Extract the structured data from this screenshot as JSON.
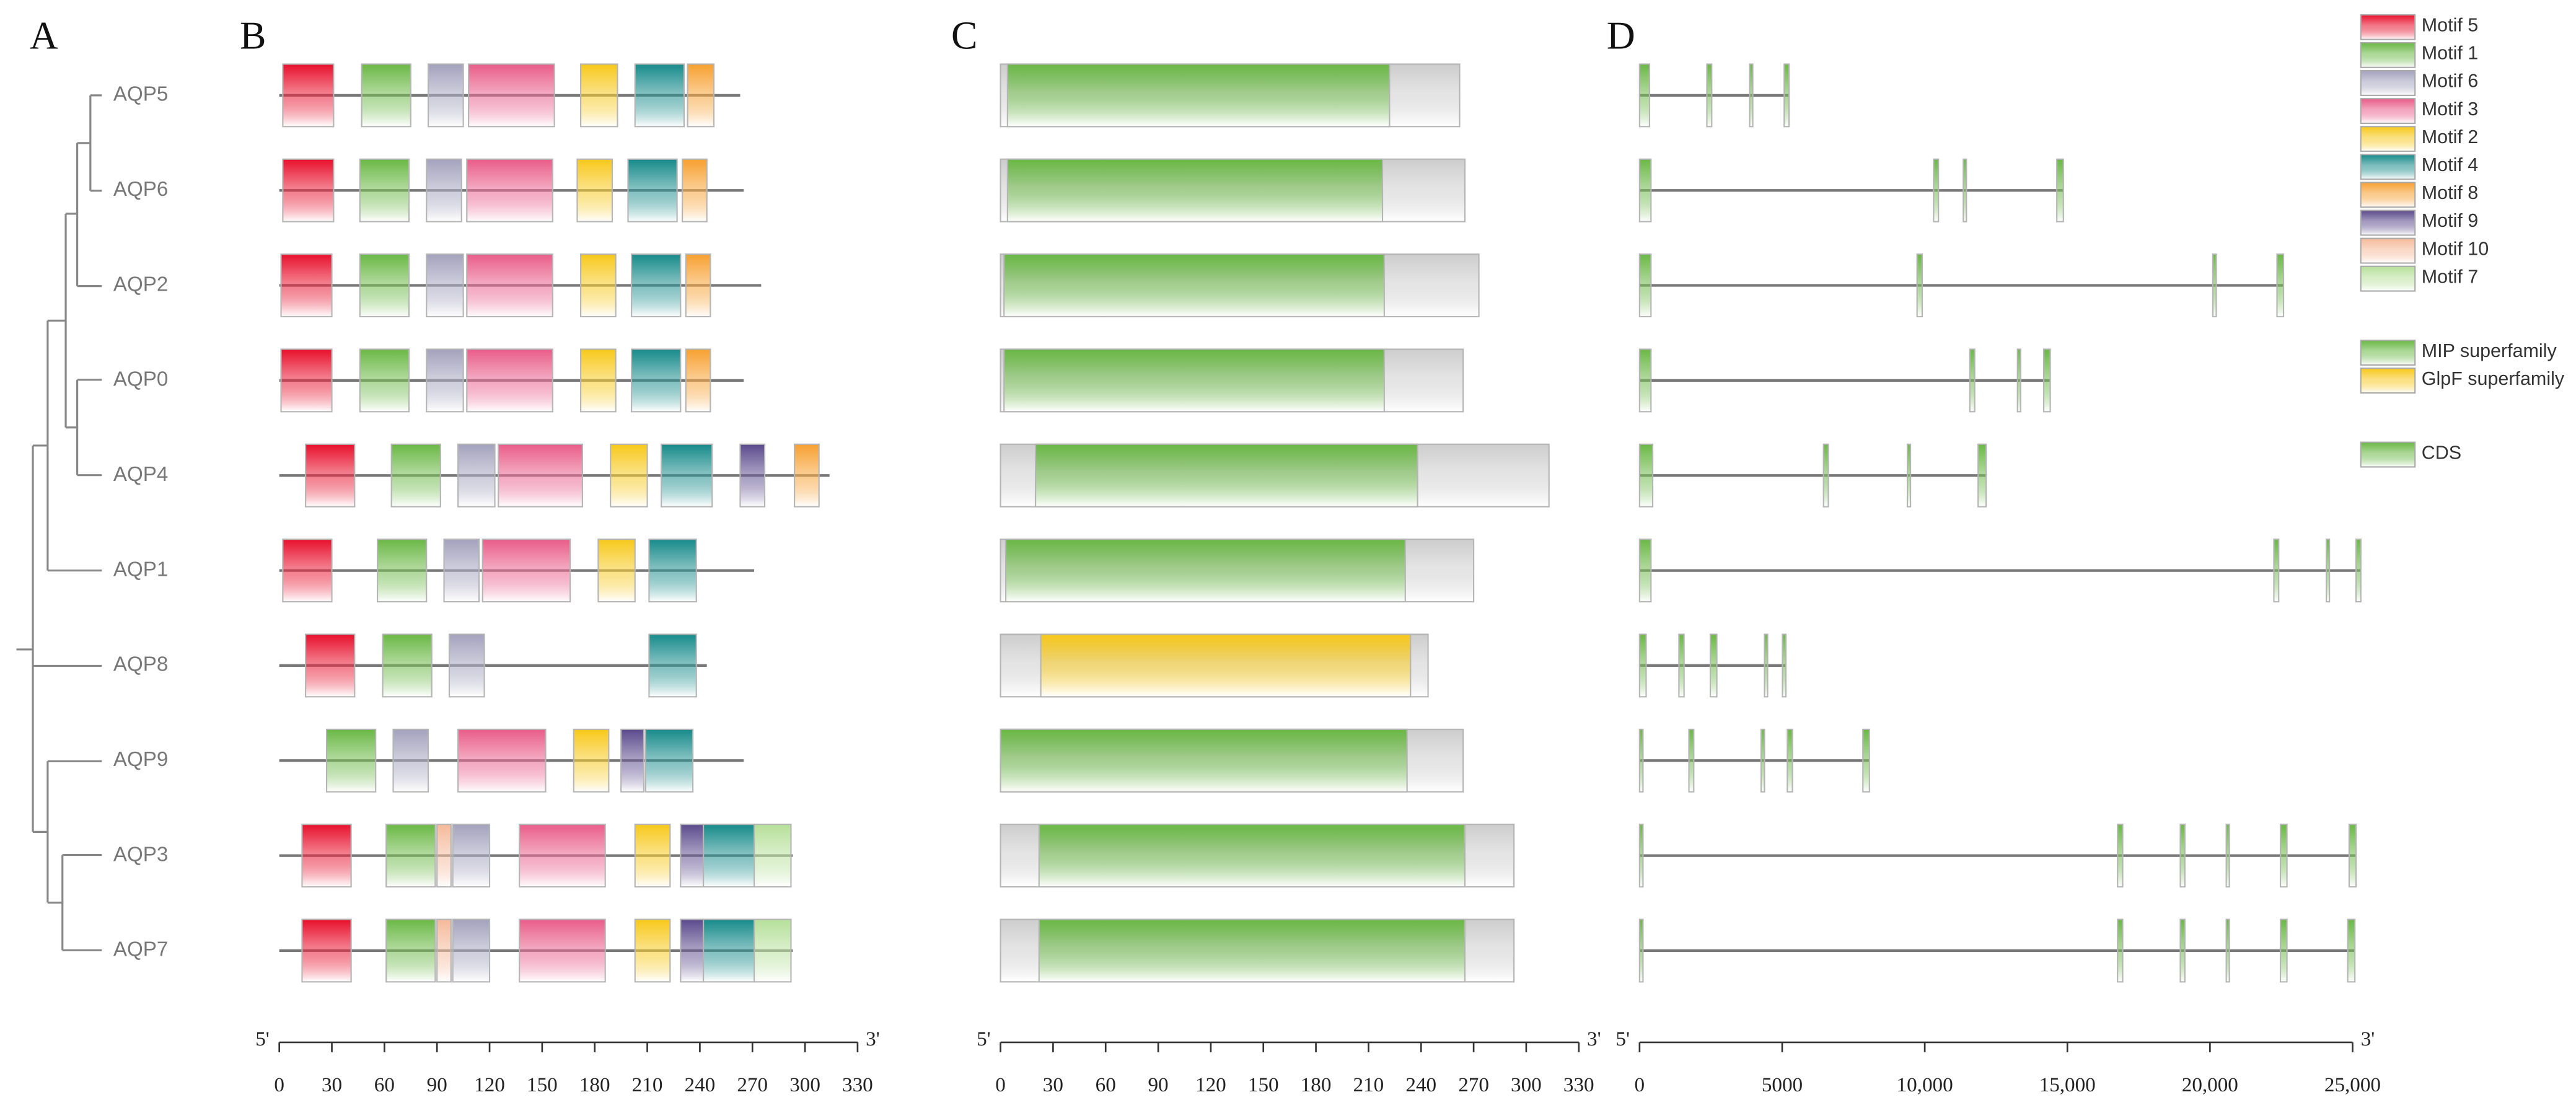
{
  "panel_labels": [
    "A",
    "B",
    "C",
    "D"
  ],
  "genes": [
    "AQP5",
    "AQP6",
    "AQP2",
    "AQP0",
    "AQP4",
    "AQP1",
    "AQP8",
    "AQP9",
    "AQP3",
    "AQP7"
  ],
  "chart_data": [
    {
      "type": "motif",
      "xlim": [
        0,
        330
      ],
      "xticks": [
        0,
        30,
        60,
        90,
        120,
        150,
        180,
        210,
        240,
        270,
        300,
        330
      ],
      "end_labels": [
        "5'",
        "3'"
      ],
      "lengths": [
        263,
        265,
        275,
        265,
        314,
        271,
        244,
        265,
        293,
        293
      ],
      "series": [
        {
          "name": "Motif 5",
          "color": "#e8102c",
          "start": [
            2,
            2,
            1,
            1,
            15,
            2,
            15,
            null,
            13,
            13
          ],
          "end": [
            31,
            31,
            30,
            30,
            43,
            30,
            43,
            null,
            41,
            41
          ]
        },
        {
          "name": "Motif 1",
          "color": "#6ab845",
          "start": [
            47,
            46,
            46,
            46,
            64,
            56,
            59,
            27,
            61,
            61
          ],
          "end": [
            75,
            74,
            74,
            74,
            92,
            84,
            87,
            55,
            89,
            89
          ]
        },
        {
          "name": "Motif 6",
          "color": "#a3a2bd",
          "start": [
            85,
            84,
            84,
            84,
            102,
            94,
            97,
            65,
            99,
            99
          ],
          "end": [
            105,
            104,
            105,
            105,
            123,
            114,
            117,
            85,
            120,
            120
          ]
        },
        {
          "name": "Motif 3",
          "color": "#e95c8a",
          "start": [
            108,
            107,
            107,
            107,
            125,
            116,
            null,
            102,
            137,
            137
          ],
          "end": [
            157,
            156,
            156,
            156,
            173,
            166,
            null,
            152,
            186,
            186
          ]
        },
        {
          "name": "Motif 2",
          "color": "#f7c81a",
          "start": [
            172,
            170,
            172,
            172,
            189,
            182,
            null,
            168,
            203,
            203
          ],
          "end": [
            193,
            190,
            192,
            192,
            210,
            203,
            null,
            188,
            223,
            223
          ]
        },
        {
          "name": "Motif 4",
          "color": "#178a8a",
          "start": [
            203,
            199,
            201,
            201,
            218,
            211,
            211,
            209,
            242,
            242
          ],
          "end": [
            231,
            227,
            229,
            229,
            247,
            238,
            238,
            236,
            271,
            271
          ]
        },
        {
          "name": "Motif 8",
          "color": "#f7a030",
          "start": [
            233,
            230,
            232,
            232,
            294,
            null,
            null,
            null,
            null,
            null
          ],
          "end": [
            248,
            244,
            246,
            246,
            308,
            null,
            null,
            null,
            null,
            null
          ]
        },
        {
          "name": "Motif 9",
          "color": "#5b4a8c",
          "start": [
            null,
            null,
            null,
            null,
            263,
            null,
            null,
            195,
            229,
            229
          ],
          "end": [
            null,
            null,
            null,
            null,
            277,
            null,
            null,
            208,
            242,
            242
          ]
        },
        {
          "name": "Motif 10",
          "color": "#f5b99a",
          "start": [
            null,
            null,
            null,
            null,
            null,
            null,
            null,
            null,
            90,
            90
          ],
          "end": [
            null,
            null,
            null,
            null,
            null,
            null,
            null,
            null,
            98,
            98
          ]
        },
        {
          "name": "Motif 7",
          "color": "#b6e09a",
          "start": [
            null,
            null,
            null,
            null,
            null,
            null,
            null,
            null,
            271,
            271
          ],
          "end": [
            null,
            null,
            null,
            null,
            null,
            null,
            null,
            null,
            292,
            292
          ]
        }
      ]
    },
    {
      "type": "domain",
      "xlim": [
        0,
        330
      ],
      "xticks": [
        0,
        30,
        60,
        90,
        120,
        150,
        180,
        210,
        240,
        270,
        300,
        330
      ],
      "end_labels": [
        "5'",
        "3'"
      ],
      "lengths": [
        262,
        265,
        273,
        264,
        313,
        270,
        244,
        264,
        293,
        293
      ],
      "series": [
        {
          "name": "MIP superfamily",
          "color": "#6ab845",
          "start": [
            4,
            4,
            2,
            2,
            20,
            3,
            null,
            0,
            22,
            22
          ],
          "end": [
            222,
            218,
            219,
            219,
            238,
            231,
            null,
            232,
            265,
            265
          ]
        },
        {
          "name": "GlpF superfamily",
          "color": "#f7c81a",
          "start": [
            null,
            null,
            null,
            null,
            null,
            null,
            23,
            null,
            null,
            null
          ],
          "end": [
            null,
            null,
            null,
            null,
            null,
            null,
            234,
            null,
            null,
            null
          ]
        }
      ]
    },
    {
      "type": "gene",
      "xlim": [
        0,
        25000
      ],
      "xticks": [
        0,
        5000,
        {
          "value": 10000,
          "label": "10,000"
        },
        {
          "value": 15000,
          "label": "15,000"
        },
        {
          "value": 20000,
          "label": "20,000"
        },
        {
          "value": 25000,
          "label": "25,000"
        }
      ],
      "end_labels": [
        "5'",
        "3'"
      ],
      "lengths": [
        5240,
        14860,
        22580,
        14400,
        12150,
        25290,
        5130,
        8060,
        25120,
        25080
      ],
      "series": [
        {
          "name": "CDS",
          "color": "#6ab845",
          "exons": [
            [
              [
                0,
                350
              ],
              [
                2360,
                2530
              ],
              [
                3860,
                3970
              ],
              [
                5070,
                5240
              ]
            ],
            [
              [
                0,
                400
              ],
              [
                10310,
                10480
              ],
              [
                11350,
                11460
              ],
              [
                14630,
                14860
              ]
            ],
            [
              [
                0,
                400
              ],
              [
                9730,
                9910
              ],
              [
                20100,
                20220
              ],
              [
                22350,
                22580
              ]
            ],
            [
              [
                0,
                400
              ],
              [
                11580,
                11750
              ],
              [
                13250,
                13360
              ],
              [
                14170,
                14400
              ]
            ],
            [
              [
                0,
                460
              ],
              [
                6450,
                6620
              ],
              [
                9390,
                9500
              ],
              [
                11870,
                12150
              ]
            ],
            [
              [
                0,
                400
              ],
              [
                22240,
                22410
              ],
              [
                24080,
                24190
              ],
              [
                25120,
                25290
              ]
            ],
            [
              [
                0,
                230
              ],
              [
                1380,
                1560
              ],
              [
                2480,
                2710
              ],
              [
                4380,
                4490
              ],
              [
                5010,
                5130
              ]
            ],
            [
              [
                0,
                120
              ],
              [
                1730,
                1900
              ],
              [
                4260,
                4380
              ],
              [
                5180,
                5360
              ],
              [
                7830,
                8060
              ]
            ],
            [
              [
                0,
                120
              ],
              [
                16760,
                16940
              ],
              [
                18960,
                19120
              ],
              [
                20570,
                20680
              ],
              [
                22470,
                22700
              ],
              [
                24880,
                25120
              ]
            ],
            [
              [
                0,
                120
              ],
              [
                16760,
                16940
              ],
              [
                18960,
                19120
              ],
              [
                20570,
                20680
              ],
              [
                22470,
                22700
              ],
              [
                24830,
                25080
              ]
            ]
          ]
        }
      ]
    }
  ]
}
